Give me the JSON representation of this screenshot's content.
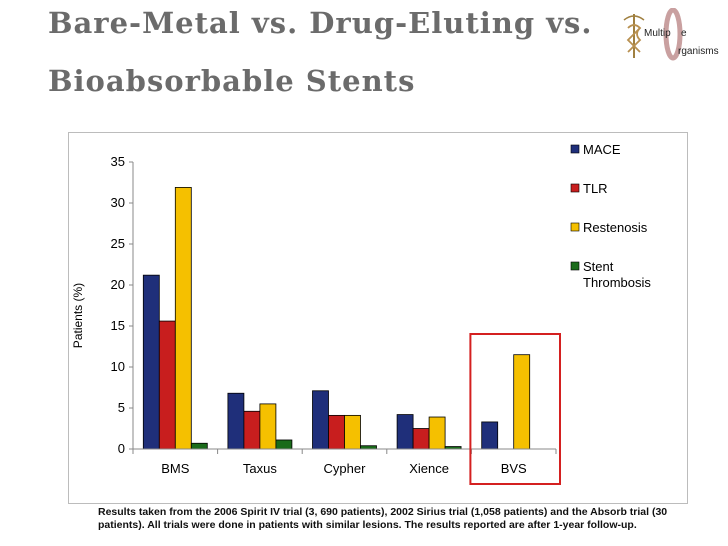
{
  "slide": {
    "title_line1": "Bare-Metal vs. Drug-Eluting vs.",
    "title_line2": "Bioabsorbable Stents",
    "footnote": "Results taken from the 2006 Spirit IV trial (3, 690 patients), 2002 Sirius trial (1,058 patients) and the Absorb trial (30 patients). All trials were done in patients with similar lesions. The results reported are after 1-year follow-up."
  },
  "logo": {
    "text_line1": "Multip",
    "text_line1_end": "e",
    "text_line2": "rganisms",
    "icon": "caduceus-icon",
    "ring_color": "#c9a0a0"
  },
  "chart_data": {
    "type": "bar",
    "title": "",
    "xlabel": "",
    "ylabel": "Patients (%)",
    "ylim": [
      0,
      35
    ],
    "yticks": [
      0,
      5,
      10,
      15,
      20,
      25,
      30,
      35
    ],
    "grid": false,
    "legend_position": "right",
    "categories": [
      "BMS",
      "Taxus",
      "Cypher",
      "Xience",
      "BVS"
    ],
    "series": [
      {
        "name": "MACE",
        "color": "#1f2f7a",
        "values": [
          21.2,
          6.8,
          7.1,
          4.2,
          3.3
        ]
      },
      {
        "name": "TLR",
        "color": "#c81e1e",
        "values": [
          15.6,
          4.6,
          4.1,
          2.5,
          0
        ]
      },
      {
        "name": "Restenosis",
        "color": "#f5c000",
        "values": [
          31.9,
          5.5,
          4.1,
          3.9,
          11.5
        ]
      },
      {
        "name": "Stent Thrombosis",
        "color": "#1a6b1a",
        "values": [
          0.7,
          1.1,
          0.4,
          0.3,
          0
        ]
      }
    ],
    "highlight": {
      "category": "BVS",
      "color": "#d42020"
    }
  }
}
